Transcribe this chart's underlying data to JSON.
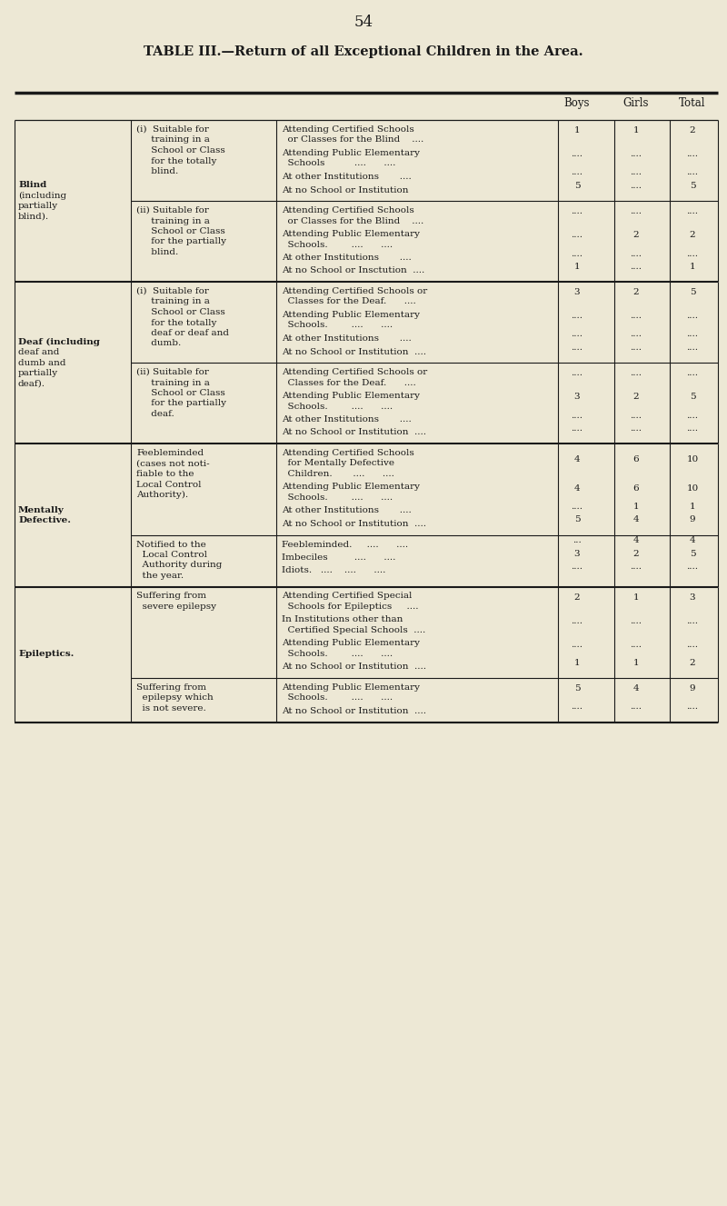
{
  "page_number": "54",
  "title": "TABLE III.—Return of all Exceptional Children in the Area.",
  "bg": "#ede8d5",
  "fg": "#1a1a1a",
  "sections": [
    {
      "category": [
        "Blind",
        "(including",
        "partially",
        "blind)."
      ],
      "cat_bold_idx": 0,
      "subs": [
        {
          "sublabel": [
            "(i)  Suitable for",
            "     training in a",
            "     School or Class",
            "     for the totally",
            "     blind."
          ],
          "rows": [
            {
              "desc": [
                "Attending Certified Schools",
                "  or Classes for the Blind    ...."
              ],
              "b": "1",
              "g": "1",
              "t": "2"
            },
            {
              "desc": [
                "Attending Public Elementary",
                "  Schools          ....      ...."
              ],
              "b": "....",
              "g": "....",
              "t": "...."
            },
            {
              "desc": [
                "At other Institutions       ...."
              ],
              "b": "....",
              "g": "....",
              "t": "...."
            },
            {
              "desc": [
                "At no School or Institution"
              ],
              "b": "5",
              "g": "....",
              "t": "5"
            }
          ]
        },
        {
          "sublabel": [
            "(ii) Suitable for",
            "     training in a",
            "     School or Class",
            "     for the partially",
            "     blind."
          ],
          "rows": [
            {
              "desc": [
                "Attending Certified Schools",
                "  or Classes for the Blind    ...."
              ],
              "b": "....",
              "g": "....",
              "t": "...."
            },
            {
              "desc": [
                "Attending Public Elementary",
                "  Schools.        ....      ...."
              ],
              "b": "....",
              "g": "2",
              "t": "2"
            },
            {
              "desc": [
                "At other Institutions       ...."
              ],
              "b": "....",
              "g": "....",
              "t": "...."
            },
            {
              "desc": [
                "At no School or Insctution  ...."
              ],
              "b": "1",
              "g": "....",
              "t": "1"
            }
          ]
        }
      ]
    },
    {
      "category": [
        "Deaf (including",
        "deaf and",
        "dumb and",
        "partially",
        "deaf)."
      ],
      "cat_bold_idx": 0,
      "subs": [
        {
          "sublabel": [
            "(i)  Suitable for",
            "     training in a",
            "     School or Class",
            "     for the totally",
            "     deaf or deaf and",
            "     dumb."
          ],
          "rows": [
            {
              "desc": [
                "Attending Certified Schools or",
                "  Classes for the Deaf.      ...."
              ],
              "b": "3",
              "g": "2",
              "t": "5"
            },
            {
              "desc": [
                "Attending Public Elementary",
                "  Schools.        ....      ...."
              ],
              "b": "....",
              "g": "....",
              "t": "...."
            },
            {
              "desc": [
                "At other Institutions       ...."
              ],
              "b": "....",
              "g": "....",
              "t": "...."
            },
            {
              "desc": [
                "At no School or Institution  ...."
              ],
              "b": "....",
              "g": "....",
              "t": "...."
            }
          ]
        },
        {
          "sublabel": [
            "(ii) Suitable for",
            "     training in a",
            "     School or Class",
            "     for the partially",
            "     deaf."
          ],
          "rows": [
            {
              "desc": [
                "Attending Certified Schools or",
                "  Classes for the Deaf.      ...."
              ],
              "b": "....",
              "g": "....",
              "t": "...."
            },
            {
              "desc": [
                "Attending Public Elementary",
                "  Schools.        ....      ...."
              ],
              "b": "3",
              "g": "2",
              "t": "5"
            },
            {
              "desc": [
                "At other Institutions       ...."
              ],
              "b": "....",
              "g": "....",
              "t": "...."
            },
            {
              "desc": [
                "At no School or Institution  ...."
              ],
              "b": "....",
              "g": "....",
              "t": "...."
            }
          ]
        }
      ]
    },
    {
      "category": [
        "Mentally",
        "Defective."
      ],
      "cat_bold_idx": -1,
      "subs": [
        {
          "sublabel": [
            "Feebleminded",
            "(cases not noti-",
            "fiable to the",
            "Local Control",
            "Authority)."
          ],
          "rows": [
            {
              "desc": [
                "Attending Certified Schools",
                "  for Mentally Defective",
                "  Children.       ....      ...."
              ],
              "b": "4",
              "g": "6",
              "t": "10"
            },
            {
              "desc": [
                "Attending Public Elementary",
                "  Schools.        ....      ...."
              ],
              "b": "4",
              "g": "6",
              "t": "10"
            },
            {
              "desc": [
                "At other Institutions       ...."
              ],
              "b": "....",
              "g": "1",
              "t": "1"
            },
            {
              "desc": [
                "At no School or Institution  ...."
              ],
              "b": "5",
              "g": "4",
              "t": "9"
            }
          ]
        },
        {
          "sublabel": [
            "Notified to the",
            "  Local Control",
            "  Authority during",
            "  the year."
          ],
          "rows": [
            {
              "desc": [
                "Feebleminded.     ....      ...."
              ],
              "b": "...",
              "g": "4",
              "t": "4"
            },
            {
              "desc": [
                "Imbeciles         ....      ...."
              ],
              "b": "3",
              "g": "2",
              "t": "5"
            },
            {
              "desc": [
                "Idiots.   ....    ....      ...."
              ],
              "b": "....",
              "g": "....",
              "t": "...."
            }
          ]
        }
      ]
    },
    {
      "category": [
        "Epileptics."
      ],
      "cat_bold_idx": 0,
      "subs": [
        {
          "sublabel": [
            "Suffering from",
            "  severe epilepsy"
          ],
          "rows": [
            {
              "desc": [
                "Attending Certified Special",
                "  Schools for Epileptics     ...."
              ],
              "b": "2",
              "g": "1",
              "t": "3"
            },
            {
              "desc": [
                "In Institutions other than",
                "  Certified Special Schools  ...."
              ],
              "b": "....",
              "g": "....",
              "t": "...."
            },
            {
              "desc": [
                "Attending Public Elementary",
                "  Schools.        ....      ...."
              ],
              "b": "....",
              "g": "....",
              "t": "...."
            },
            {
              "desc": [
                "At no School or Institution  ...."
              ],
              "b": "1",
              "g": "1",
              "t": "2"
            }
          ]
        },
        {
          "sublabel": [
            "Suffering from",
            "  epilepsy which",
            "  is not severe."
          ],
          "rows": [
            {
              "desc": [
                "Attending Public Elementary",
                "  Schools.        ....      ...."
              ],
              "b": "5",
              "g": "4",
              "t": "9"
            },
            {
              "desc": [
                "At no School or Institution  ...."
              ],
              "b": "....",
              "g": "....",
              "t": "...."
            }
          ]
        }
      ]
    }
  ]
}
